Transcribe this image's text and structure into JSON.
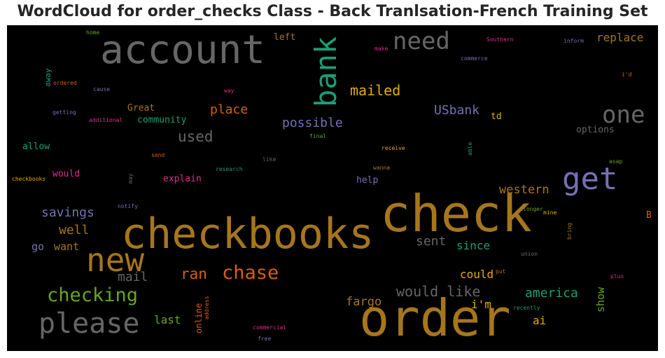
{
  "title": "WordCloud for order_checks Class - Back Tranlsation-French Training Set",
  "colors": {
    "background": "#000000",
    "title": "#262626"
  },
  "words": {
    "check": "check",
    "order": "order",
    "checkbooks": "checkbooks",
    "account": "account",
    "new": "new",
    "please": "please",
    "bank": "bank",
    "get": "get",
    "one": "one",
    "need": "need",
    "checking": "checking",
    "chase": "chase",
    "mailed": "mailed",
    "would_like": "would like",
    "used": "used",
    "place": "place",
    "USbank": "USbank",
    "possible": "possible",
    "ran": "ran",
    "america": "america",
    "mail": "mail",
    "sent": "sent",
    "since": "since",
    "savings": "savings",
    "well": "well",
    "western": "western",
    "replace": "replace",
    "fargo": "fargo",
    "i_m": "i'm",
    "could": "could",
    "last": "last",
    "ai": "ai",
    "want": "want",
    "go": "go",
    "show": "show",
    "community": "community",
    "Great": "Great",
    "explain": "explain",
    "would": "would",
    "help": "help",
    "allow": "allow",
    "options": "options",
    "td": "td",
    "left": "left",
    "online": "online",
    "away": "away",
    "B": "B",
    "home": "home",
    "ordered": "ordered",
    "cause": "cause",
    "getting": "getting",
    "additional": "additional",
    "send": "send",
    "checkbooks_small": "checkbooks",
    "may": "may",
    "notify": "notify",
    "research": "research",
    "like": "like",
    "wanna": "wanna",
    "receive": "receive",
    "final": "final",
    "able": "able",
    "asap": "asap",
    "Southern": "Southern",
    "inform": "inform",
    "commerce": "commerce",
    "make": "make",
    "way": "way",
    "i_d": "i'd",
    "longer": "longer",
    "mine": "mine",
    "bring": "bring",
    "union": "union",
    "put": "put",
    "plus": "plus",
    "recently": "recently",
    "address": "address",
    "commercial": "commercial",
    "free": "free"
  }
}
